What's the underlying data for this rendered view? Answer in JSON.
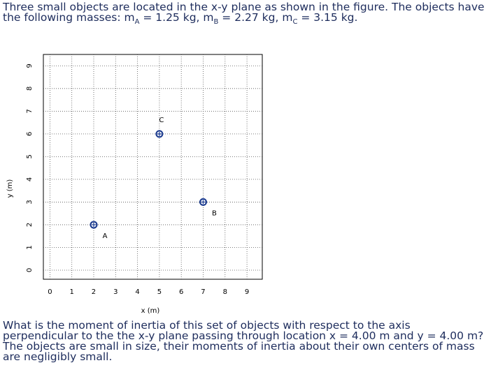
{
  "intro": [
    "Three small objects are located in the x-y plane as shown in the figure. The objects have the following masses: m",
    "A",
    " = 1.25 kg, m",
    "B",
    " = 2.27 kg, m",
    "C",
    " = 3.15 kg."
  ],
  "figure": {
    "type": "scatter",
    "xlabel": "x (m)",
    "ylabel": "y (m)",
    "xlim": [
      -0.3,
      9.7
    ],
    "ylim": [
      -0.4,
      9.5
    ],
    "xticks": [
      0,
      1,
      2,
      3,
      4,
      5,
      6,
      7,
      8,
      9
    ],
    "yticks": [
      0,
      1,
      2,
      3,
      4,
      5,
      6,
      7,
      8,
      9
    ],
    "grid": true,
    "color": "#1a3a8f",
    "points": [
      {
        "label": "A",
        "x": 2,
        "y": 2
      },
      {
        "label": "B",
        "x": 7,
        "y": 3
      },
      {
        "label": "C",
        "x": 5,
        "y": 6
      }
    ]
  },
  "question": "What is the moment of inertia of this set of objects with respect to the axis perpendicular to the the x-y plane passing through location x = 4.00 m and y = 4.00 m? The objects are small in size, their moments of inertia about their own centers of mass are negligibly small."
}
